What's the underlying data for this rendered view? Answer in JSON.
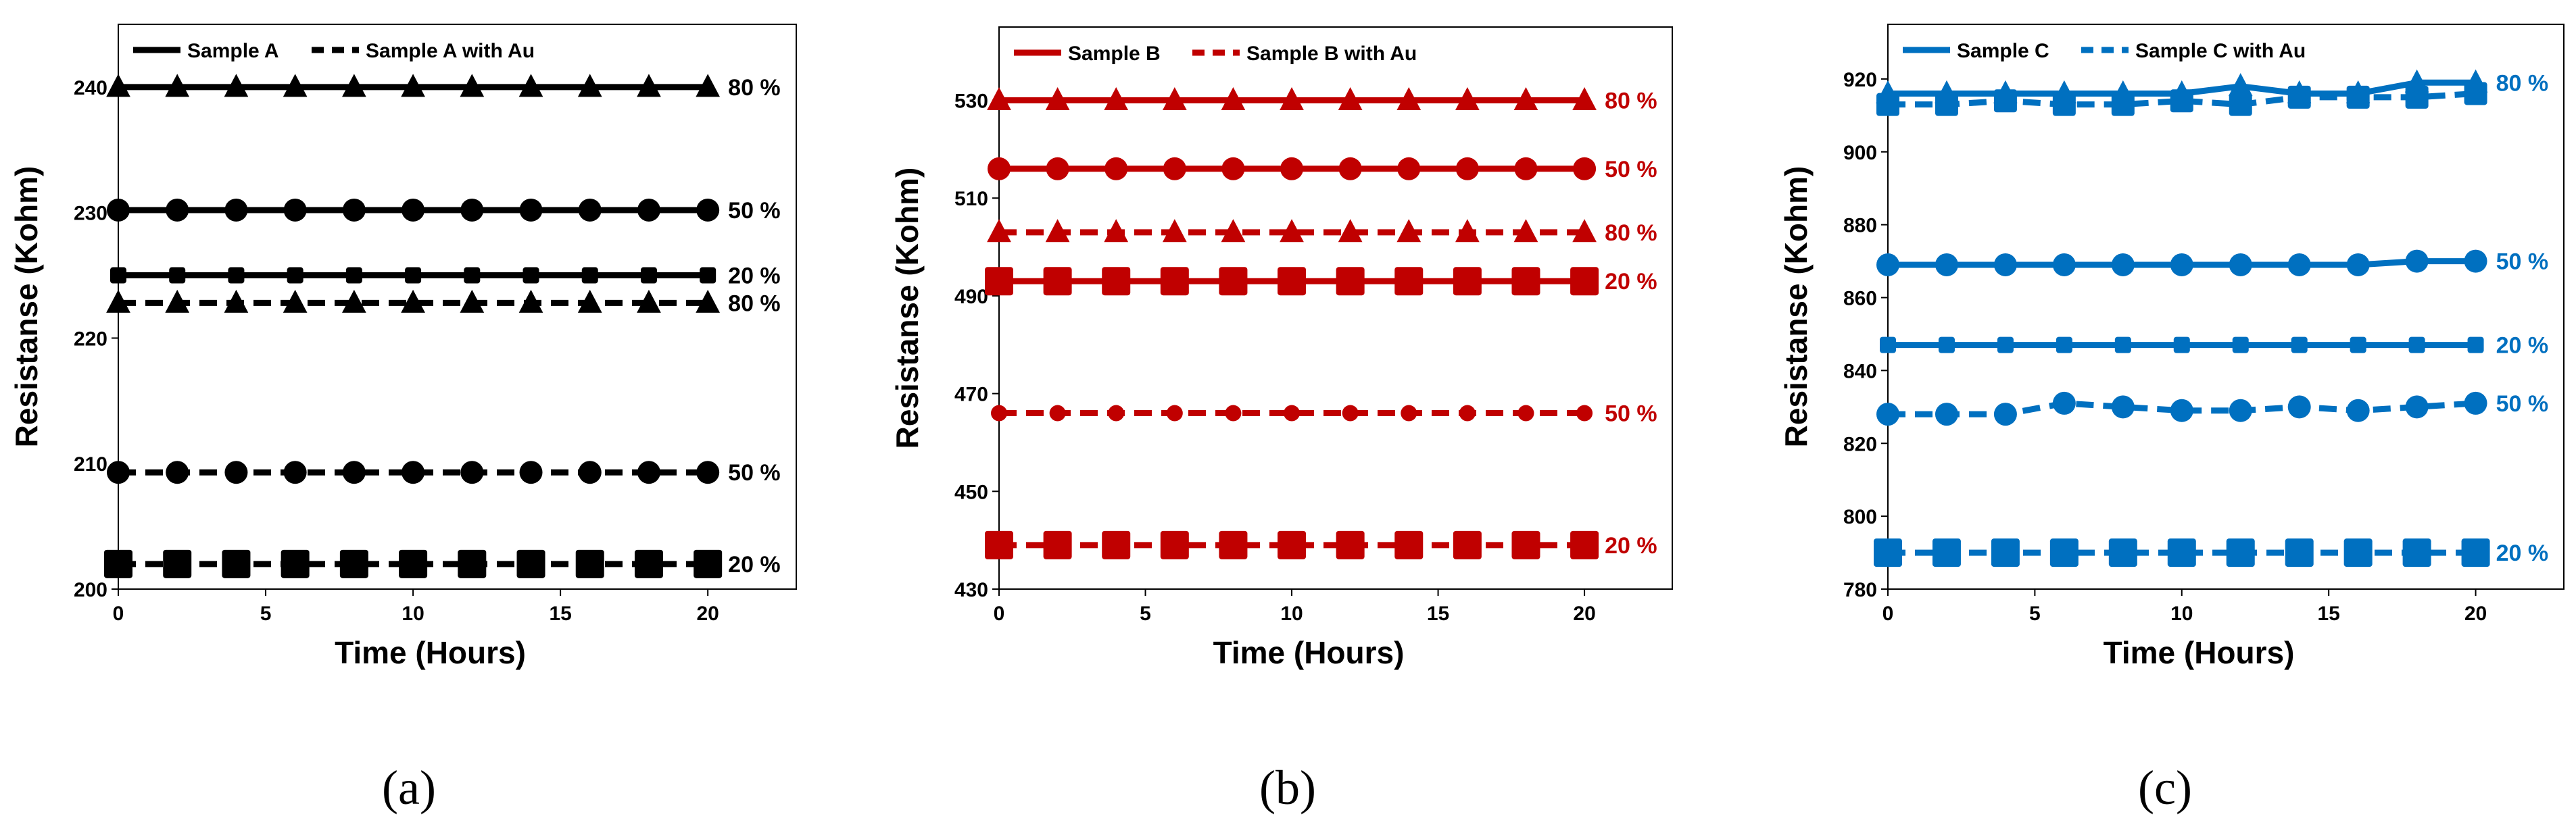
{
  "figure": {
    "panel_labels": [
      "(a)",
      "(b)",
      "(c)"
    ]
  },
  "chart_data": [
    {
      "type": "line",
      "panel": "(a)",
      "color": "#000000",
      "xlabel": "Time (Hours)",
      "ylabel": "Resistanse (Kohm)",
      "xlim": [
        0,
        23
      ],
      "ylim": [
        200,
        245
      ],
      "xticks": [
        0,
        5,
        10,
        15,
        20
      ],
      "yticks": [
        200,
        210,
        220,
        230,
        240
      ],
      "x": [
        0,
        2,
        4,
        6,
        8,
        10,
        12,
        14,
        16,
        18,
        20
      ],
      "legend": [
        "Sample A",
        "Sample A with Au"
      ],
      "legend_position": "top-left",
      "series": [
        {
          "name": "Sample A",
          "label": "80 %",
          "style": "solid",
          "marker": "triangle",
          "marker_size": "medium",
          "values": [
            240,
            240,
            240,
            240,
            240,
            240,
            240,
            240,
            240,
            240,
            240
          ]
        },
        {
          "name": "Sample A",
          "label": "50 %",
          "style": "solid",
          "marker": "circle",
          "marker_size": "medium",
          "values": [
            230.2,
            230.2,
            230.2,
            230.2,
            230.2,
            230.2,
            230.2,
            230.2,
            230.2,
            230.2,
            230.2
          ]
        },
        {
          "name": "Sample A",
          "label": "20 %",
          "style": "solid",
          "marker": "square",
          "marker_size": "small",
          "values": [
            225,
            225,
            225,
            225,
            225,
            225,
            225,
            225,
            225,
            225,
            225
          ]
        },
        {
          "name": "Sample A with Au",
          "label": "80 %",
          "style": "dashed",
          "marker": "triangle",
          "marker_size": "medium",
          "values": [
            222.8,
            222.8,
            222.8,
            222.8,
            222.8,
            222.8,
            222.8,
            222.8,
            222.8,
            222.8,
            222.8
          ]
        },
        {
          "name": "Sample A with Au",
          "label": "50 %",
          "style": "dashed",
          "marker": "circle",
          "marker_size": "medium",
          "values": [
            209.3,
            209.3,
            209.3,
            209.3,
            209.3,
            209.3,
            209.3,
            209.3,
            209.3,
            209.3,
            209.3
          ]
        },
        {
          "name": "Sample A with Au",
          "label": "20 %",
          "style": "dashed",
          "marker": "square",
          "marker_size": "large",
          "values": [
            202,
            202,
            202,
            202,
            202,
            202,
            202,
            202,
            202,
            202,
            202
          ]
        }
      ]
    },
    {
      "type": "line",
      "panel": "(b)",
      "color": "#c00000",
      "xlabel": "Time (Hours)",
      "ylabel": "Resistanse (Kohm)",
      "xlim": [
        0,
        23
      ],
      "ylim": [
        430,
        545
      ],
      "xticks": [
        0,
        5,
        10,
        15,
        20
      ],
      "yticks": [
        430,
        450,
        470,
        490,
        510,
        530
      ],
      "x": [
        0,
        2,
        4,
        6,
        8,
        10,
        12,
        14,
        16,
        18,
        20
      ],
      "legend": [
        "Sample B",
        "Sample B with Au"
      ],
      "legend_position": "top-left",
      "series": [
        {
          "name": "Sample B",
          "label": "80 %",
          "style": "solid",
          "marker": "triangle",
          "marker_size": "medium",
          "values": [
            530,
            530,
            530,
            530,
            530,
            530,
            530,
            530,
            530,
            530,
            530
          ]
        },
        {
          "name": "Sample B",
          "label": "50 %",
          "style": "solid",
          "marker": "circle",
          "marker_size": "medium",
          "values": [
            516,
            516,
            516,
            516,
            516,
            516,
            516,
            516,
            516,
            516,
            516
          ]
        },
        {
          "name": "Sample B with Au",
          "label": "80 %",
          "style": "dashed",
          "marker": "triangle",
          "marker_size": "medium",
          "values": [
            503,
            503,
            503,
            503,
            503,
            503,
            503,
            503,
            503,
            503,
            503
          ]
        },
        {
          "name": "Sample B",
          "label": "20 %",
          "style": "solid",
          "marker": "square",
          "marker_size": "large",
          "values": [
            493,
            493,
            493,
            493,
            493,
            493,
            493,
            493,
            493,
            493,
            493
          ]
        },
        {
          "name": "Sample B with Au",
          "label": "50 %",
          "style": "dashed",
          "marker": "circle",
          "marker_size": "small",
          "values": [
            466,
            466,
            466,
            466,
            466,
            466,
            466,
            466,
            466,
            466,
            466
          ]
        },
        {
          "name": "Sample B with Au",
          "label": "20 %",
          "style": "dashed",
          "marker": "square",
          "marker_size": "large",
          "values": [
            439,
            439,
            439,
            439,
            439,
            439,
            439,
            439,
            439,
            439,
            439
          ]
        }
      ]
    },
    {
      "type": "line",
      "panel": "(c)",
      "color": "#0070c0",
      "xlabel": "Time (Hours)",
      "ylabel": "Resistanse (Kohm)",
      "xlim": [
        0,
        23
      ],
      "ylim": [
        780,
        935
      ],
      "xticks": [
        0,
        5,
        10,
        15,
        20
      ],
      "yticks": [
        780,
        800,
        820,
        840,
        860,
        880,
        900,
        920
      ],
      "x": [
        0,
        2,
        4,
        6,
        8,
        10,
        12,
        14,
        16,
        18,
        20
      ],
      "legend": [
        "Sample C",
        "Sample C with Au"
      ],
      "legend_position": "top-left",
      "series": [
        {
          "name": "Sample C",
          "label": "80 %",
          "style": "solid",
          "marker": "triangle",
          "marker_size": "medium",
          "values": [
            916,
            916,
            916,
            916,
            916,
            916,
            918,
            916,
            916,
            919,
            919
          ]
        },
        {
          "name": "Sample C with Au",
          "label": "",
          "style": "dashed",
          "marker": "square",
          "marker_size": "medium",
          "values": [
            913,
            913,
            914,
            913,
            913,
            914,
            913,
            915,
            915,
            915,
            916
          ]
        },
        {
          "name": "Sample C",
          "label": "50 %",
          "style": "solid",
          "marker": "circle",
          "marker_size": "medium",
          "values": [
            869,
            869,
            869,
            869,
            869,
            869,
            869,
            869,
            869,
            870,
            870
          ]
        },
        {
          "name": "Sample C",
          "label": "20 %",
          "style": "solid",
          "marker": "square",
          "marker_size": "small",
          "values": [
            847,
            847,
            847,
            847,
            847,
            847,
            847,
            847,
            847,
            847,
            847
          ]
        },
        {
          "name": "Sample C with Au",
          "label": "50 %",
          "style": "dashed",
          "marker": "circle",
          "marker_size": "medium",
          "values": [
            828,
            828,
            828,
            831,
            830,
            829,
            829,
            830,
            829,
            830,
            831
          ]
        },
        {
          "name": "Sample C with Au",
          "label": "20 %",
          "style": "dashed",
          "marker": "square",
          "marker_size": "large",
          "values": [
            790,
            790,
            790,
            790,
            790,
            790,
            790,
            790,
            790,
            790,
            790
          ]
        }
      ]
    }
  ]
}
